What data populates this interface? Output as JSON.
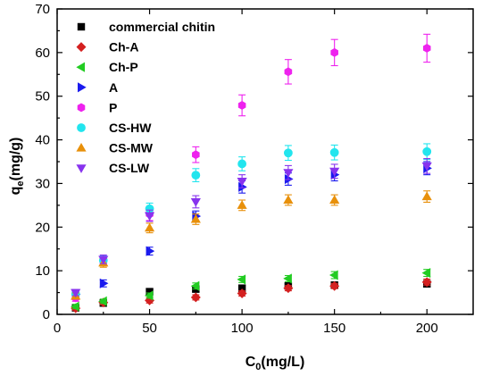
{
  "chart_data": {
    "type": "scatter",
    "xlabel": "C",
    "xlabel_sub": "0",
    "xlabel_unit": "(mg/L)",
    "ylabel": "q",
    "ylabel_sub": "e",
    "ylabel_unit": "(mg/g)",
    "xlim": [
      0,
      225
    ],
    "ylim": [
      0,
      70
    ],
    "xticks": [
      0,
      50,
      100,
      150,
      200
    ],
    "yticks": [
      0,
      10,
      20,
      30,
      40,
      50,
      60,
      70
    ],
    "x_tick_labels": [
      "0",
      "50",
      "100",
      "150",
      "200"
    ],
    "y_tick_labels": [
      "0",
      "10",
      "20",
      "30",
      "40",
      "50",
      "60",
      "70"
    ],
    "legend_position": "top-left",
    "grid": false,
    "x": [
      10,
      25,
      50,
      75,
      100,
      125,
      150,
      200
    ],
    "series": [
      {
        "name": "commercial chitin",
        "marker": "square",
        "color": "#000000",
        "values": [
          1.5,
          2.6,
          5.2,
          5.8,
          6.0,
          6.5,
          6.7,
          7.0
        ],
        "errors": [
          0.5,
          0.5,
          0.6,
          0.6,
          0.6,
          0.6,
          0.6,
          0.6
        ]
      },
      {
        "name": "Ch-A",
        "marker": "diamond",
        "color": "#d42020",
        "values": [
          1.4,
          2.7,
          3.2,
          3.9,
          4.8,
          6.0,
          6.5,
          7.4
        ],
        "errors": [
          0.5,
          0.5,
          0.6,
          0.6,
          0.6,
          0.6,
          0.6,
          0.7
        ]
      },
      {
        "name": "Ch-P",
        "marker": "triangle-left",
        "color": "#22cc22",
        "values": [
          1.8,
          3.0,
          4.3,
          6.5,
          8.0,
          8.2,
          9.0,
          9.5
        ],
        "errors": [
          0.5,
          0.5,
          0.6,
          0.7,
          0.7,
          0.7,
          0.8,
          0.8
        ]
      },
      {
        "name": "A",
        "marker": "triangle-right",
        "color": "#1a1aee",
        "values": [
          4.6,
          7.1,
          14.5,
          22.5,
          29.2,
          31.0,
          32.0,
          33.5
        ],
        "errors": [
          0.7,
          0.8,
          0.9,
          1.2,
          1.4,
          1.4,
          1.4,
          1.5
        ]
      },
      {
        "name": "P",
        "marker": "hexagon",
        "color": "#ee22ee",
        "values": [
          3.8,
          12.3,
          23.0,
          36.6,
          47.9,
          55.6,
          60.0,
          61.0
        ],
        "errors": [
          0.8,
          1.0,
          1.5,
          1.8,
          2.4,
          2.8,
          3.0,
          3.2
        ]
      },
      {
        "name": "CS-HW",
        "marker": "circle",
        "color": "#22e5ee",
        "values": [
          4.7,
          12.4,
          24.2,
          31.9,
          34.5,
          37.0,
          37.1,
          37.3
        ],
        "errors": [
          0.8,
          1.0,
          1.3,
          1.5,
          1.6,
          1.7,
          1.7,
          1.8
        ]
      },
      {
        "name": "CS-MW",
        "marker": "triangle-up",
        "color": "#e8900a",
        "values": [
          4.2,
          11.8,
          19.8,
          21.8,
          25.0,
          26.2,
          26.2,
          27.0
        ],
        "errors": [
          0.7,
          1.0,
          1.1,
          1.2,
          1.2,
          1.2,
          1.2,
          1.3
        ]
      },
      {
        "name": "CS-LW",
        "marker": "triangle-down",
        "color": "#8833ee",
        "values": [
          5.0,
          12.6,
          22.6,
          25.8,
          30.5,
          32.5,
          32.8,
          34.0
        ],
        "errors": [
          0.7,
          1.0,
          1.3,
          1.4,
          1.5,
          1.6,
          1.6,
          1.7
        ]
      }
    ]
  }
}
